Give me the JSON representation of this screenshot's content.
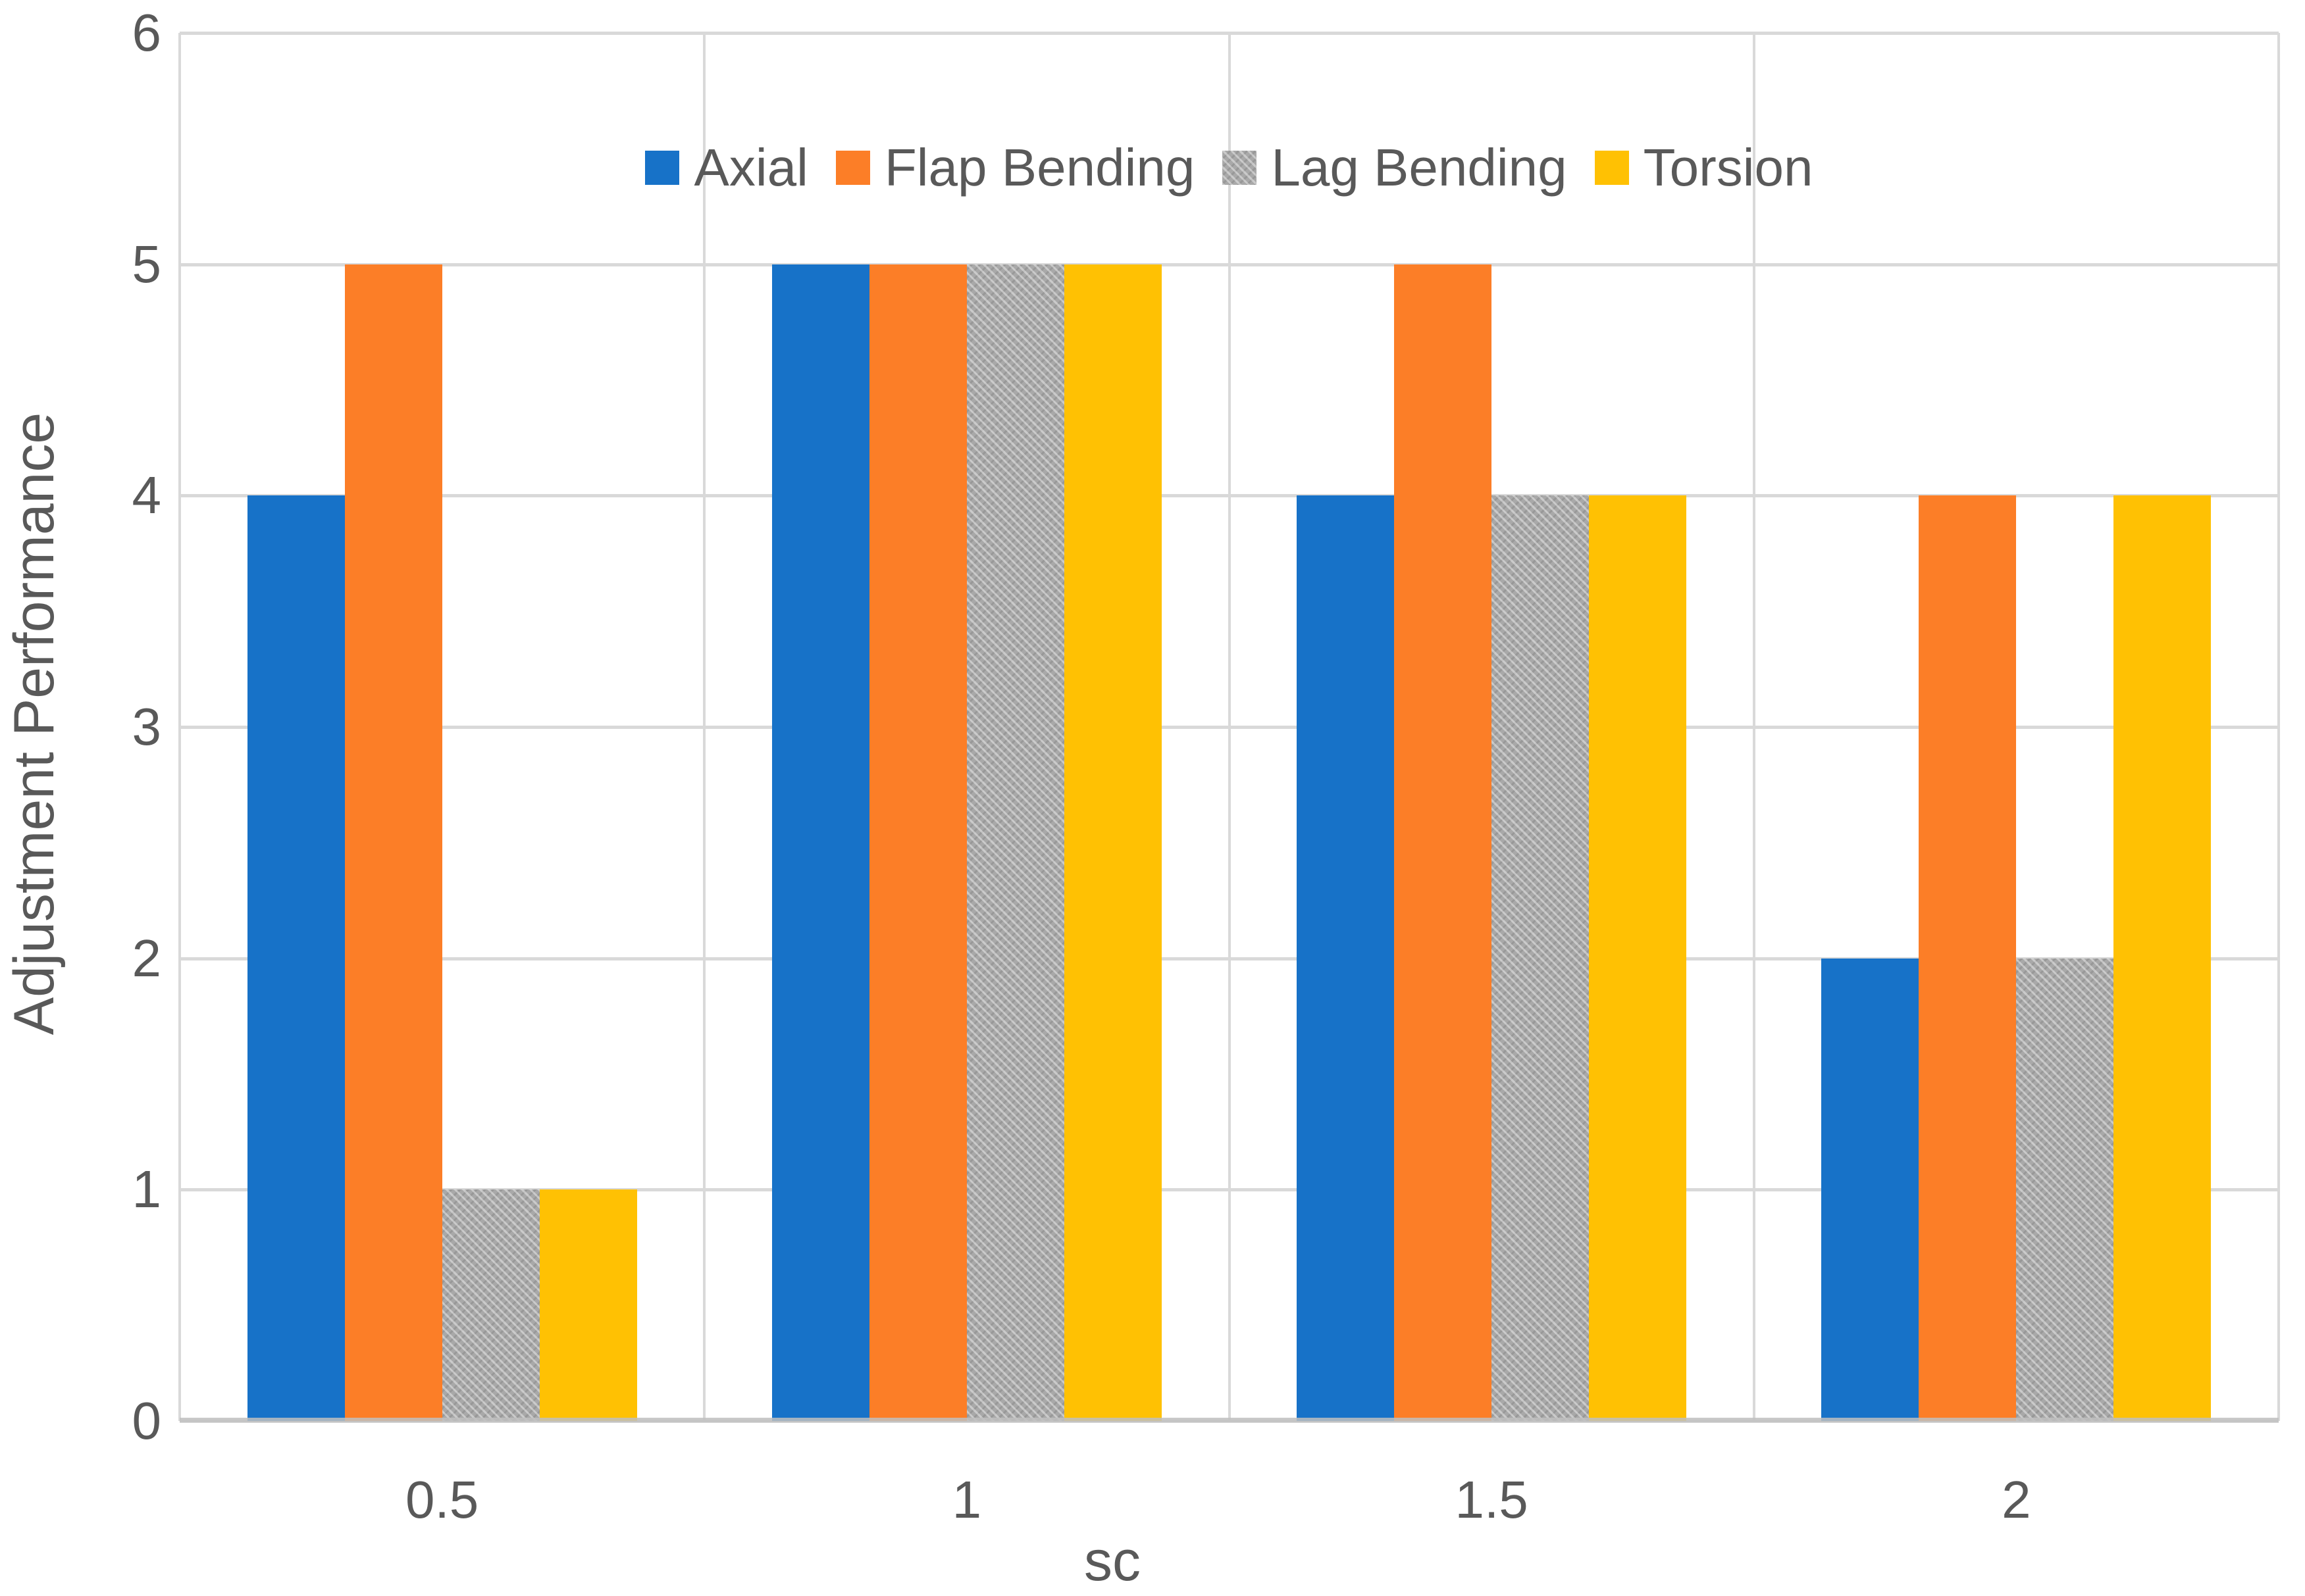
{
  "chart_data": {
    "type": "bar",
    "title": "",
    "xlabel": "sc",
    "ylabel": "Adjustment Performance",
    "categories": [
      "0.5",
      "1",
      "1.5",
      "2"
    ],
    "series": [
      {
        "name": "Axial",
        "color": "#1772c8",
        "pattern": false,
        "values": [
          4,
          5,
          4,
          2
        ]
      },
      {
        "name": "Flap Bending",
        "color": "#fc7e27",
        "pattern": false,
        "values": [
          5,
          5,
          5,
          4
        ]
      },
      {
        "name": "Lag Bending",
        "color": "#a9a9a9",
        "pattern": true,
        "values": [
          1,
          5,
          4,
          2
        ]
      },
      {
        "name": "Torsion",
        "color": "#ffc103",
        "pattern": false,
        "values": [
          1,
          5,
          4,
          4
        ]
      }
    ],
    "ylim": [
      0,
      6
    ],
    "yticks": [
      0,
      1,
      2,
      3,
      4,
      5,
      6
    ],
    "grid": true,
    "legend_position": "top-center",
    "colors": {
      "gridline": "#d9d9d9",
      "axis_line": "#bfbfbf",
      "text": "#595959",
      "background": "#ffffff"
    }
  }
}
